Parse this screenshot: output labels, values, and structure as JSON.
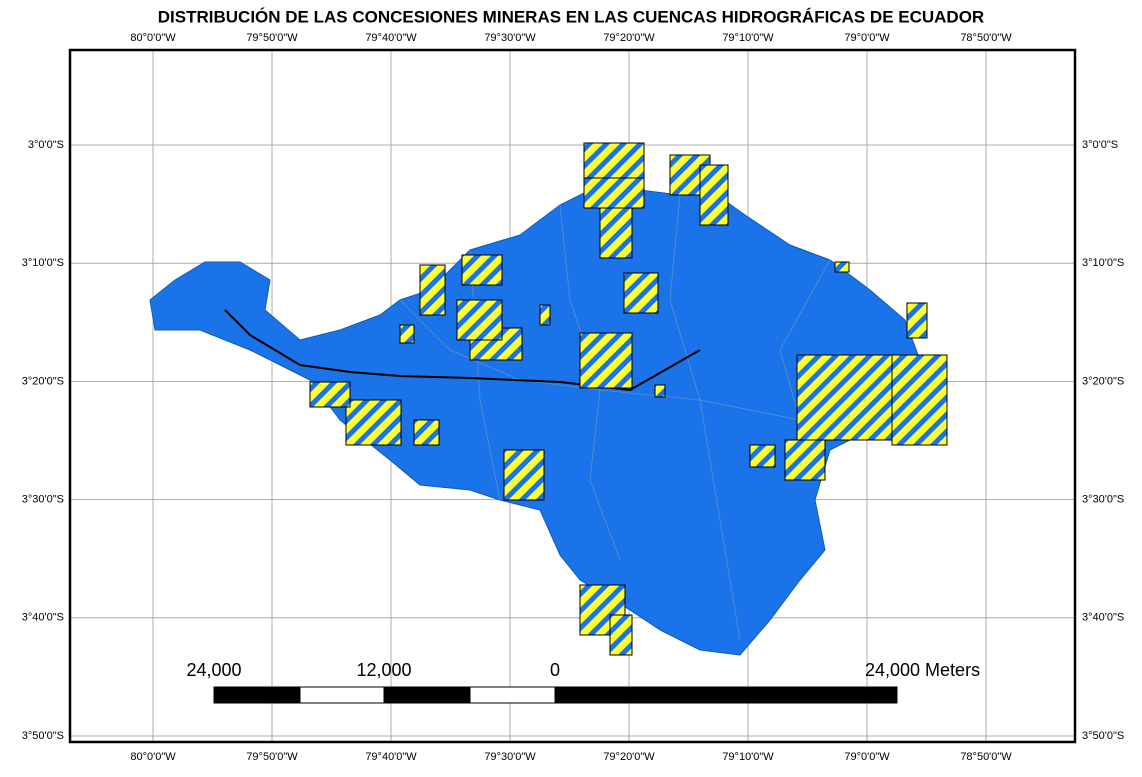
{
  "title": "DISTRIBUCIÓN DE LAS CONCESIONES MINERAS EN LAS CUENCAS HIDROGRÁFICAS DE ECUADOR",
  "grid": {
    "longitudes": [
      "80°0'0\"W",
      "79°50'0\"W",
      "79°40'0\"W",
      "79°30'0\"W",
      "79°20'0\"W",
      "79°10'0\"W",
      "79°0'0\"W",
      "78°50'0\"W"
    ],
    "latitudes": [
      "3°0'0\"S",
      "3°10'0\"S",
      "3°20'0\"S",
      "3°30'0\"S",
      "3°40'0\"S",
      "3°50'0\"S"
    ]
  },
  "scale_bar": {
    "labels": [
      "24,000",
      "12,000",
      "0",
      "24,000 Meters"
    ]
  }
}
